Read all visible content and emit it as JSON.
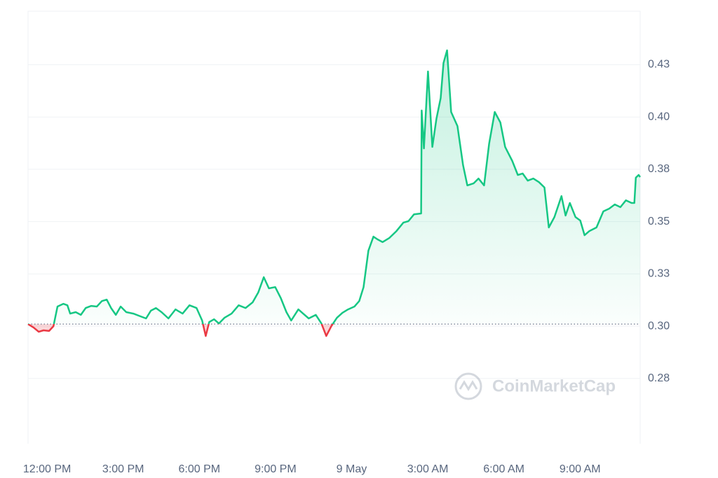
{
  "chart_data": {
    "type": "line",
    "watermark": "CoinMarketCap",
    "x": [
      11.25,
      11.47,
      11.67,
      11.86,
      12.08,
      12.25,
      12.41,
      12.64,
      12.8,
      12.91,
      13.13,
      13.33,
      13.52,
      13.74,
      13.96,
      14.16,
      14.35,
      14.52,
      14.71,
      14.9,
      15.12,
      15.4,
      15.68,
      15.9,
      16.09,
      16.29,
      16.51,
      16.78,
      17.06,
      17.34,
      17.61,
      17.89,
      18.11,
      18.25,
      18.39,
      18.58,
      18.77,
      18.99,
      19.27,
      19.55,
      19.82,
      20.1,
      20.32,
      20.54,
      20.74,
      20.99,
      21.21,
      21.43,
      21.62,
      21.9,
      22.09,
      22.31,
      22.59,
      22.81,
      23.0,
      23.2,
      23.42,
      23.64,
      23.86,
      24.11,
      24.3,
      24.47,
      24.66,
      24.86,
      25.02,
      25.22,
      25.49,
      25.77,
      26.04,
      26.24,
      26.46,
      26.74,
      26.76,
      26.85,
      27.01,
      27.18,
      27.34,
      27.51,
      27.62,
      27.76,
      27.92,
      28.17,
      28.39,
      28.56,
      28.81,
      29.0,
      29.22,
      29.42,
      29.64,
      29.86,
      30.05,
      30.33,
      30.55,
      30.74,
      30.94,
      31.16,
      31.38,
      31.6,
      31.77,
      31.99,
      32.27,
      32.43,
      32.6,
      32.82,
      33.01,
      33.18,
      33.37,
      33.65,
      33.92,
      34.15,
      34.37,
      34.59,
      34.81,
      35.03,
      35.14,
      35.2,
      35.31,
      35.37
    ],
    "series": [
      {
        "color": "#16c784",
        "negative_color": "#ea3943",
        "values": [
          0.301,
          0.2993,
          0.2973,
          0.298,
          0.2977,
          0.3,
          0.3094,
          0.3107,
          0.31,
          0.306,
          0.3067,
          0.3054,
          0.3087,
          0.3097,
          0.3094,
          0.312,
          0.3127,
          0.3087,
          0.3054,
          0.3094,
          0.3067,
          0.306,
          0.3047,
          0.3037,
          0.3074,
          0.3087,
          0.3067,
          0.3037,
          0.308,
          0.306,
          0.31,
          0.3087,
          0.3027,
          0.2953,
          0.302,
          0.3033,
          0.3013,
          0.304,
          0.306,
          0.31,
          0.3087,
          0.3114,
          0.3161,
          0.3234,
          0.3181,
          0.3187,
          0.3134,
          0.3067,
          0.3027,
          0.308,
          0.306,
          0.3037,
          0.3054,
          0.3013,
          0.2953,
          0.3,
          0.304,
          0.3064,
          0.308,
          0.3094,
          0.312,
          0.3187,
          0.3361,
          0.3428,
          0.3415,
          0.3402,
          0.3422,
          0.3455,
          0.3495,
          0.3502,
          0.3535,
          0.3539,
          0.4031,
          0.385,
          0.4218,
          0.3857,
          0.3991,
          0.4091,
          0.4258,
          0.4319,
          0.4024,
          0.3957,
          0.377,
          0.3673,
          0.3683,
          0.3706,
          0.3673,
          0.3873,
          0.4024,
          0.3974,
          0.3857,
          0.379,
          0.3723,
          0.373,
          0.3696,
          0.3706,
          0.3689,
          0.3663,
          0.3472,
          0.3522,
          0.3622,
          0.3529,
          0.3589,
          0.3522,
          0.3505,
          0.3435,
          0.3455,
          0.3472,
          0.3549,
          0.3562,
          0.3582,
          0.3569,
          0.3602,
          0.3589,
          0.3589,
          0.371,
          0.3723,
          0.3713
        ]
      }
    ],
    "baseline": 0.301,
    "xlim": [
      11.25,
      35.37
    ],
    "xticks": [
      {
        "value": 12,
        "label": "12:00 PM"
      },
      {
        "value": 15,
        "label": "3:00 PM"
      },
      {
        "value": 18,
        "label": "6:00 PM"
      },
      {
        "value": 21,
        "label": "9:00 PM"
      },
      {
        "value": 24,
        "label": "9 May"
      },
      {
        "value": 27,
        "label": "3:00 AM"
      },
      {
        "value": 30,
        "label": "6:00 AM"
      },
      {
        "value": 33,
        "label": "9:00 AM"
      }
    ],
    "ylim": [
      0.2438,
      0.4506
    ],
    "yticks": [
      {
        "value": 0.275,
        "label": "0.28"
      },
      {
        "value": 0.3,
        "label": "0.30"
      },
      {
        "value": 0.325,
        "label": "0.33"
      },
      {
        "value": 0.35,
        "label": "0.35"
      },
      {
        "value": 0.375,
        "label": "0.38"
      },
      {
        "value": 0.4,
        "label": "0.40"
      },
      {
        "value": 0.425,
        "label": "0.43"
      }
    ],
    "grid": true
  }
}
